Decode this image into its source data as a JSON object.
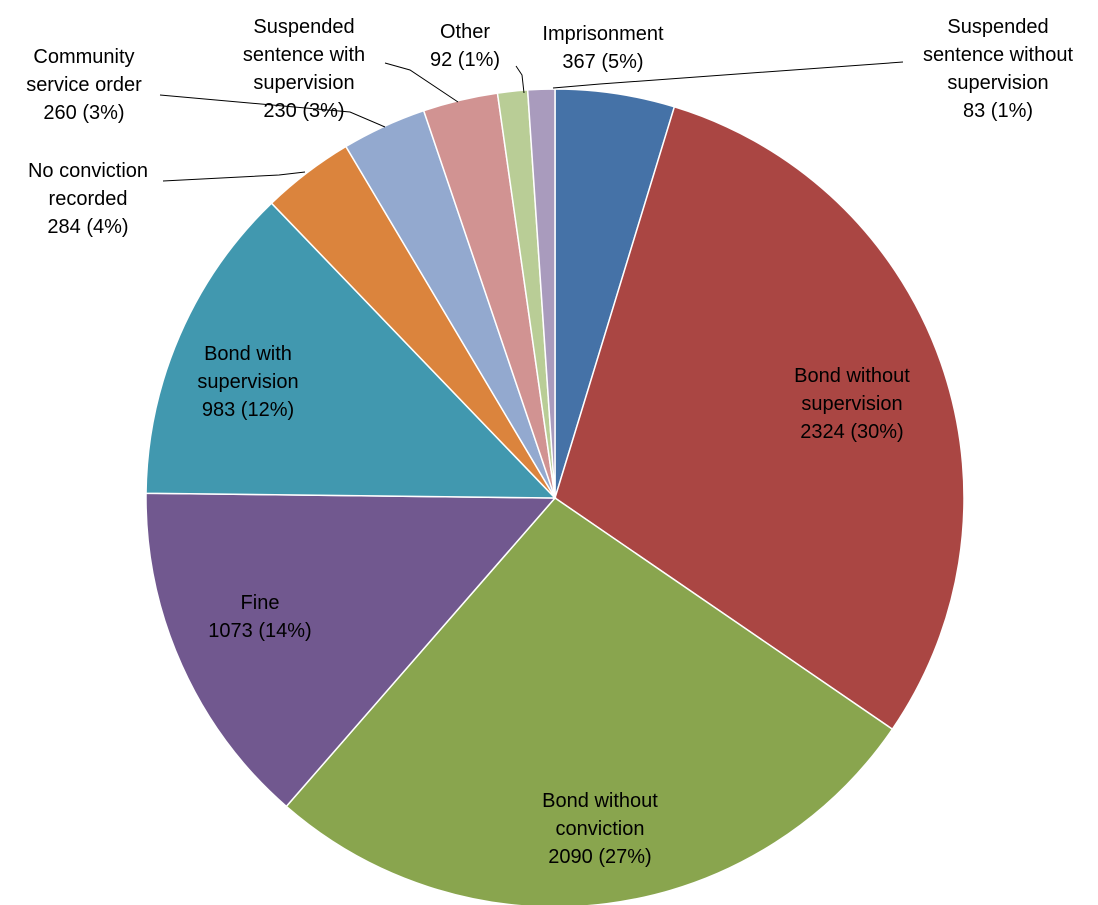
{
  "chart_data": {
    "type": "pie",
    "start_angle_deg": 0,
    "direction": "clockwise",
    "slices": [
      {
        "category": "Imprisonment",
        "value": 367,
        "percent_label": "5%",
        "color": "#4572A7",
        "label_lines": [
          "Imprisonment",
          "367 (5%)"
        ]
      },
      {
        "category": "Bond without supervision",
        "value": 2324,
        "percent_label": "30%",
        "color": "#AA4643",
        "label_lines": [
          "Bond without",
          "supervision",
          "2324 (30%)"
        ]
      },
      {
        "category": "Bond without conviction",
        "value": 2090,
        "percent_label": "27%",
        "color": "#89A54E",
        "label_lines": [
          "Bond without",
          "conviction",
          "2090 (27%)"
        ]
      },
      {
        "category": "Fine",
        "value": 1073,
        "percent_label": "14%",
        "color": "#71588F",
        "label_lines": [
          "Fine",
          "1073 (14%)"
        ]
      },
      {
        "category": "Bond with supervision",
        "value": 983,
        "percent_label": "12%",
        "color": "#4198AF",
        "label_lines": [
          "Bond with",
          "supervision",
          "983 (12%)"
        ]
      },
      {
        "category": "No conviction recorded",
        "value": 284,
        "percent_label": "4%",
        "color": "#DB843D",
        "label_lines": [
          "No conviction",
          "recorded",
          "284 (4%)"
        ]
      },
      {
        "category": "Community service order",
        "value": 260,
        "percent_label": "3%",
        "color": "#93A9CF",
        "label_lines": [
          "Community",
          "service order",
          "260 (3%)"
        ]
      },
      {
        "category": "Suspended sentence with supervision",
        "value": 230,
        "percent_label": "3%",
        "color": "#D19392",
        "label_lines": [
          "Suspended",
          "sentence with",
          "supervision",
          "230 (3%)"
        ]
      },
      {
        "category": "Other",
        "value": 92,
        "percent_label": "1%",
        "color": "#B9CD96",
        "label_lines": [
          "Other",
          "92 (1%)"
        ]
      },
      {
        "category": "Suspended sentence without supervision",
        "value": 83,
        "percent_label": "1%",
        "color": "#A99BBD",
        "label_lines": [
          "Suspended",
          "sentence without",
          "supervision",
          "83 (1%)"
        ]
      }
    ]
  }
}
